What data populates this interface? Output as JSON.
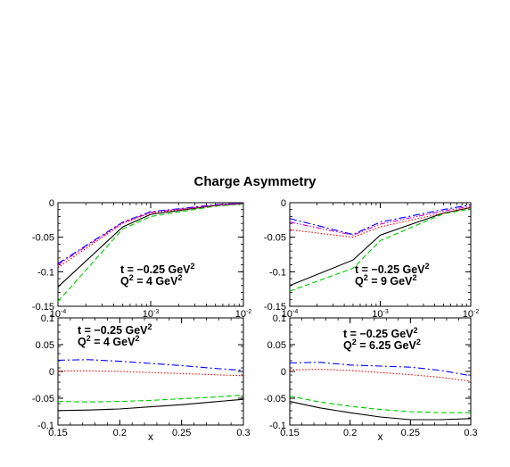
{
  "title": "Charge Asymmetry",
  "colors": {
    "black": "#000000",
    "green": "#00cc00",
    "red": "#ff0000",
    "blue": "#0000ff",
    "magenta": "#cc00cc"
  },
  "chart_data": [
    {
      "type": "line",
      "panel": "top-left",
      "xscale": "log",
      "xlim": [
        0.0001,
        0.01
      ],
      "ylim": [
        -0.15,
        0
      ],
      "xticks": [
        {
          "v": 0.0001,
          "base": "10",
          "exp": "-4"
        },
        {
          "v": 0.001,
          "base": "10",
          "exp": "-3"
        },
        {
          "v": 0.01,
          "base": "10",
          "exp": "-2"
        }
      ],
      "yticks": [
        {
          "v": 0,
          "label": "0"
        },
        {
          "v": -0.05,
          "label": "-0.05"
        },
        {
          "v": -0.1,
          "label": "-0.1"
        },
        {
          "v": -0.15,
          "label": "-0.15"
        }
      ],
      "xlabel": "",
      "annotation": {
        "t_label": "t = −0.25 GeV",
        "t_sup": "2",
        "q_label": "Q",
        "q_sup": "2",
        "q_value": " = 4 GeV",
        "q_value_sup": "2"
      },
      "x": [
        0.0001,
        0.0005,
        0.001,
        0.005,
        0.01
      ],
      "series": [
        {
          "style": "solid",
          "color": "#000000",
          "values": [
            -0.122,
            -0.035,
            -0.017,
            -0.004,
            -0.001
          ]
        },
        {
          "style": "dashed",
          "color": "#00cc00",
          "values": [
            -0.143,
            -0.038,
            -0.02,
            -0.005,
            -0.002
          ]
        },
        {
          "style": "dotted",
          "color": "#ff0000",
          "values": [
            -0.094,
            -0.03,
            -0.015,
            -0.004,
            -0.001
          ]
        },
        {
          "style": "dashdot",
          "color": "#0000ff",
          "values": [
            -0.088,
            -0.028,
            -0.013,
            -0.003,
            -0.0005
          ]
        },
        {
          "style": "dashdotdot",
          "color": "#cc00cc",
          "values": [
            -0.09,
            -0.029,
            -0.014,
            -0.0035,
            -0.001
          ]
        }
      ]
    },
    {
      "type": "line",
      "panel": "top-right",
      "xscale": "log",
      "xlim": [
        0.0001,
        0.01
      ],
      "ylim": [
        -0.15,
        0
      ],
      "xticks": [
        {
          "v": 0.0001,
          "base": "10",
          "exp": "-4"
        },
        {
          "v": 0.001,
          "base": "10",
          "exp": "-3"
        },
        {
          "v": 0.01,
          "base": "10",
          "exp": "-2"
        }
      ],
      "yticks": [
        {
          "v": 0,
          "label": "0"
        },
        {
          "v": -0.05,
          "label": "-0.05"
        },
        {
          "v": -0.1,
          "label": "-0.1"
        },
        {
          "v": -0.15,
          "label": "-0.15"
        }
      ],
      "xlabel": "",
      "annotation": {
        "t_label": "t = −0.25 GeV",
        "t_sup": "2",
        "q_label": "Q",
        "q_sup": "2",
        "q_value": " = 9 GeV",
        "q_value_sup": "2"
      },
      "x": [
        0.0001,
        0.0005,
        0.001,
        0.005,
        0.01
      ],
      "series": [
        {
          "style": "solid",
          "color": "#000000",
          "values": [
            -0.12,
            -0.083,
            -0.047,
            -0.015,
            -0.007
          ]
        },
        {
          "style": "dashed",
          "color": "#00cc00",
          "values": [
            -0.128,
            -0.095,
            -0.055,
            -0.016,
            -0.009
          ]
        },
        {
          "style": "dotted",
          "color": "#ff0000",
          "values": [
            -0.039,
            -0.05,
            -0.035,
            -0.015,
            -0.007
          ]
        },
        {
          "style": "dashdot",
          "color": "#0000ff",
          "values": [
            -0.023,
            -0.046,
            -0.028,
            -0.01,
            -0.003
          ]
        },
        {
          "style": "dashdotdot",
          "color": "#cc00cc",
          "values": [
            -0.028,
            -0.047,
            -0.031,
            -0.012,
            -0.005
          ]
        }
      ]
    },
    {
      "type": "line",
      "panel": "bottom-left",
      "xscale": "linear",
      "xlim": [
        0.15,
        0.3
      ],
      "ylim": [
        -0.1,
        0.1
      ],
      "xticks": [
        {
          "v": 0.15,
          "label": "0.15"
        },
        {
          "v": 0.2,
          "label": "0.2"
        },
        {
          "v": 0.25,
          "label": "0.25"
        },
        {
          "v": 0.3,
          "label": "0.3"
        }
      ],
      "yticks": [
        {
          "v": 0.1,
          "label": "0.1"
        },
        {
          "v": 0.05,
          "label": "0.05"
        },
        {
          "v": 0,
          "label": "0"
        },
        {
          "v": -0.05,
          "label": "-0.05"
        },
        {
          "v": -0.1,
          "label": "-0.1"
        }
      ],
      "xlabel": "x",
      "annotation": {
        "t_label": "t = −0.25 GeV",
        "t_sup": "2",
        "q_label": "Q",
        "q_sup": "2",
        "q_value": " = 4 GeV",
        "q_value_sup": "2"
      },
      "x": [
        0.15,
        0.175,
        0.2,
        0.225,
        0.25,
        0.275,
        0.3
      ],
      "series": [
        {
          "style": "solid",
          "color": "#000000",
          "values": [
            -0.073,
            -0.072,
            -0.07,
            -0.066,
            -0.062,
            -0.057,
            -0.052
          ]
        },
        {
          "style": "dashed",
          "color": "#00cc00",
          "values": [
            -0.056,
            -0.057,
            -0.056,
            -0.054,
            -0.051,
            -0.048,
            -0.044
          ]
        },
        {
          "style": "dotted",
          "color": "#ff0000",
          "values": [
            0.001,
            0.001,
            0.0,
            -0.002,
            -0.004,
            -0.006,
            -0.008
          ]
        },
        {
          "style": "dashdot",
          "color": "#0000ff",
          "values": [
            0.021,
            0.022,
            0.019,
            0.015,
            0.011,
            0.006,
            0.002
          ]
        }
      ]
    },
    {
      "type": "line",
      "panel": "bottom-right",
      "xscale": "linear",
      "xlim": [
        0.15,
        0.3
      ],
      "ylim": [
        -0.1,
        0.1
      ],
      "xticks": [
        {
          "v": 0.15,
          "label": "0.15"
        },
        {
          "v": 0.2,
          "label": "0.2"
        },
        {
          "v": 0.25,
          "label": "0.25"
        },
        {
          "v": 0.3,
          "label": "0.3"
        }
      ],
      "yticks": [
        {
          "v": 0.1,
          "label": "0.1"
        },
        {
          "v": 0.05,
          "label": "0.05"
        },
        {
          "v": 0,
          "label": "0"
        },
        {
          "v": -0.05,
          "label": "-0.05"
        },
        {
          "v": -0.1,
          "label": "-0.1"
        }
      ],
      "xlabel": "x",
      "annotation": {
        "t_label": "t = −0.25 GeV",
        "t_sup": "2",
        "q_label": "Q",
        "q_sup": "2",
        "q_value": " = 6.25 GeV",
        "q_value_sup": "2"
      },
      "x": [
        0.15,
        0.175,
        0.2,
        0.225,
        0.25,
        0.275,
        0.3
      ],
      "series": [
        {
          "style": "solid",
          "color": "#000000",
          "values": [
            -0.056,
            -0.068,
            -0.077,
            -0.085,
            -0.09,
            -0.09,
            -0.088
          ]
        },
        {
          "style": "dashed",
          "color": "#00cc00",
          "values": [
            -0.046,
            -0.057,
            -0.065,
            -0.071,
            -0.075,
            -0.077,
            -0.077
          ]
        },
        {
          "style": "dotted",
          "color": "#ff0000",
          "values": [
            0.003,
            0.004,
            0.002,
            -0.002,
            -0.006,
            -0.011,
            -0.018
          ]
        },
        {
          "style": "dashdot",
          "color": "#0000ff",
          "values": [
            0.016,
            0.017,
            0.012,
            0.01,
            0.008,
            0.002,
            -0.008
          ]
        }
      ]
    }
  ]
}
